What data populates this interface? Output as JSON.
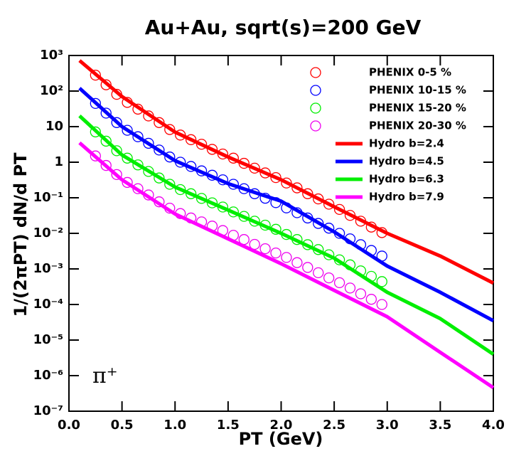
{
  "chart_data": {
    "type": "line",
    "title": "Au+Au, sqrt(s)=200 GeV",
    "x_label": "PT (GeV)",
    "y_label": "1/(2πPT) dN/d PT",
    "annotation": "π⁺",
    "log_y": true,
    "legend": "upper right",
    "xlim": [
      0,
      4
    ],
    "xticks": [
      {
        "value": 0,
        "label": "0.0"
      },
      0.5,
      {
        "value": 1,
        "label": "1.0"
      },
      1.5,
      {
        "value": 2,
        "label": "2.0"
      },
      2.5,
      {
        "value": 3,
        "label": "3.0"
      },
      3.5,
      {
        "value": 4,
        "label": "4.0"
      }
    ],
    "ylim": [
      1e-07,
      1000
    ],
    "yticks": [
      {
        "value": 1000,
        "label": "10³"
      },
      {
        "value": 100,
        "label": "10²"
      },
      10,
      1,
      {
        "value": 0.1,
        "label": "10⁻¹"
      },
      {
        "value": 0.01,
        "label": "10⁻²"
      },
      {
        "value": 0.001,
        "label": "10⁻³"
      },
      {
        "value": 0.0001,
        "label": "10⁻⁴"
      },
      {
        "value": 1e-05,
        "label": "10⁻⁵"
      },
      {
        "value": 1e-06,
        "label": "10⁻⁶"
      },
      {
        "value": 1e-07,
        "label": "10⁻⁷"
      }
    ],
    "series": [
      {
        "name": "PHENIX 0-5 %",
        "color": "#ff0000",
        "style": "markers",
        "x": [
          0.25,
          0.35,
          0.45,
          0.55,
          0.65,
          0.75,
          0.85,
          0.95,
          1.05,
          1.15,
          1.25,
          1.35,
          1.45,
          1.55,
          1.65,
          1.75,
          1.85,
          1.95,
          2.05,
          2.15,
          2.25,
          2.35,
          2.45,
          2.55,
          2.65,
          2.75,
          2.85,
          2.95
        ],
        "values": [
          280,
          150,
          81,
          48,
          31,
          20,
          13,
          8.3,
          5.8,
          4.3,
          3.2,
          2.3,
          1.7,
          1.3,
          0.93,
          0.68,
          0.5,
          0.37,
          0.26,
          0.19,
          0.13,
          0.093,
          0.066,
          0.047,
          0.032,
          0.022,
          0.015,
          0.0105
        ]
      },
      {
        "name": "PHENIX 10-15 %",
        "color": "#0000ff",
        "style": "markers",
        "x": [
          0.25,
          0.35,
          0.45,
          0.55,
          0.65,
          0.75,
          0.85,
          0.95,
          1.05,
          1.15,
          1.25,
          1.35,
          1.45,
          1.55,
          1.65,
          1.75,
          1.85,
          1.95,
          2.05,
          2.15,
          2.25,
          2.35,
          2.45,
          2.55,
          2.65,
          2.75,
          2.85,
          2.95
        ],
        "values": [
          45,
          24,
          13,
          7.9,
          5.2,
          3.4,
          2.2,
          1.4,
          1.0,
          0.76,
          0.57,
          0.43,
          0.32,
          0.24,
          0.18,
          0.13,
          0.097,
          0.073,
          0.052,
          0.038,
          0.027,
          0.019,
          0.014,
          0.01,
          0.007,
          0.0048,
          0.0033,
          0.0023
        ]
      },
      {
        "name": "PHENIX 15-20 %",
        "color": "#00ee00",
        "style": "markers",
        "x": [
          0.25,
          0.35,
          0.45,
          0.55,
          0.65,
          0.75,
          0.85,
          0.95,
          1.05,
          1.15,
          1.25,
          1.35,
          1.45,
          1.55,
          1.65,
          1.75,
          1.85,
          1.95,
          2.05,
          2.15,
          2.25,
          2.35,
          2.45,
          2.55,
          2.65,
          2.75,
          2.85,
          2.95
        ],
        "values": [
          7.1,
          3.9,
          2.1,
          1.3,
          0.84,
          0.55,
          0.36,
          0.24,
          0.17,
          0.13,
          0.096,
          0.072,
          0.055,
          0.04,
          0.03,
          0.022,
          0.017,
          0.013,
          0.0093,
          0.0067,
          0.0048,
          0.0035,
          0.0025,
          0.0018,
          0.0013,
          0.00088,
          0.00062,
          0.00044
        ]
      },
      {
        "name": "PHENIX 20-30 %",
        "color": "#ee00ee",
        "style": "markers",
        "x": [
          0.25,
          0.35,
          0.45,
          0.55,
          0.65,
          0.75,
          0.85,
          0.95,
          1.05,
          1.15,
          1.25,
          1.35,
          1.45,
          1.55,
          1.65,
          1.75,
          1.85,
          1.95,
          2.05,
          2.15,
          2.25,
          2.35,
          2.45,
          2.55,
          2.65,
          2.75,
          2.85,
          2.95
        ],
        "values": [
          1.5,
          0.81,
          0.45,
          0.27,
          0.18,
          0.12,
          0.077,
          0.051,
          0.036,
          0.027,
          0.021,
          0.016,
          0.012,
          0.0088,
          0.0067,
          0.0049,
          0.0037,
          0.0028,
          0.0021,
          0.0015,
          0.0011,
          0.00078,
          0.00056,
          0.00041,
          0.00029,
          0.0002,
          0.00014,
          0.0001
        ]
      },
      {
        "name": "Hydro b=2.4",
        "color": "#ff0000",
        "style": "line",
        "x": [
          0.1,
          0.5,
          1,
          1.5,
          2,
          2.5,
          3,
          3.5,
          4
        ],
        "values": [
          720,
          70,
          7,
          1.4,
          0.32,
          0.056,
          0.01,
          0.0023,
          0.0004
        ]
      },
      {
        "name": "Hydro b=4.5",
        "color": "#0000ff",
        "style": "line",
        "x": [
          0.1,
          0.5,
          1,
          1.5,
          2,
          2.5,
          3,
          3.5,
          4
        ],
        "values": [
          120,
          10,
          1.1,
          0.25,
          0.08,
          0.011,
          0.0012,
          0.00022,
          3.5e-05
        ]
      },
      {
        "name": "Hydro b=6.3",
        "color": "#00ee00",
        "style": "line",
        "x": [
          0.1,
          0.5,
          1,
          1.5,
          2,
          2.5,
          3,
          3.5,
          4
        ],
        "values": [
          20,
          1.6,
          0.2,
          0.045,
          0.01,
          0.002,
          0.00022,
          4e-05,
          4e-06
        ]
      },
      {
        "name": "Hydro b=7.9",
        "color": "#ff00ff",
        "style": "line",
        "x": [
          0.1,
          0.5,
          1,
          1.5,
          2,
          2.5,
          3,
          3.5,
          4
        ],
        "values": [
          3.5,
          0.32,
          0.035,
          0.007,
          0.0014,
          0.00025,
          4.5e-05,
          4.5e-06,
          4.6e-07
        ]
      }
    ]
  }
}
